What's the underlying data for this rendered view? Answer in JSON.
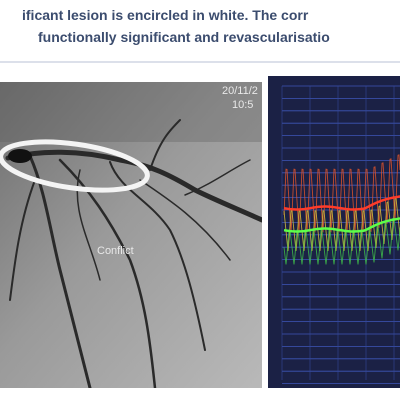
{
  "caption": {
    "lines": [
      "ificant lesion is encircled in white. The corr",
      "functionally significant and revascularisatio"
    ]
  },
  "angiogram": {
    "timestamp_date": "20/11/2",
    "timestamp_time": "10:5",
    "label": "Conflict"
  }
}
